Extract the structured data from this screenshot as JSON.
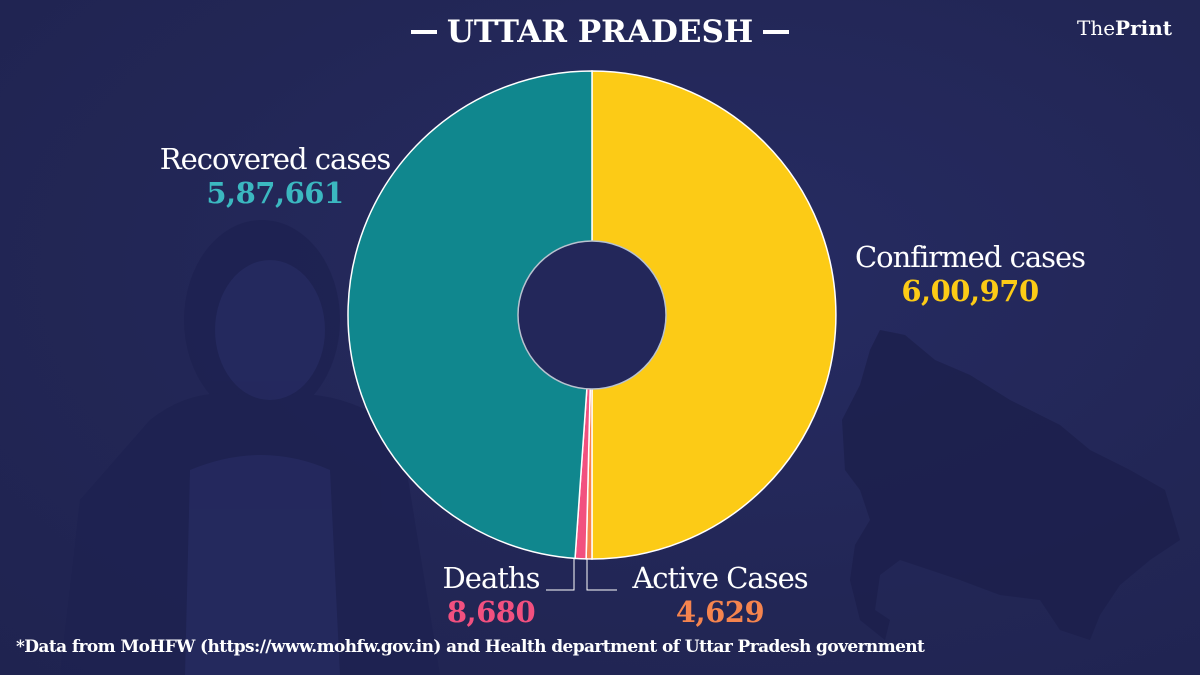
{
  "header": {
    "title": "UTTAR PRADESH",
    "logo_the": "The",
    "logo_print": "Print"
  },
  "labels": {
    "recovered": {
      "name": "Recovered cases",
      "value": "5,87,661"
    },
    "confirmed": {
      "name": "Confirmed cases",
      "value": "6,00,970"
    },
    "deaths": {
      "name": "Deaths",
      "value": "8,680"
    },
    "active": {
      "name": "Active Cases",
      "value": "4,629"
    }
  },
  "footnote": "*Data from MoHFW (https://www.mohfw.gov.in) and Health department of  Uttar Pradesh government",
  "colors": {
    "background": "#23275a",
    "confirmed": "#fccb16",
    "recovered": "#10878e",
    "deaths": "#f2507f",
    "active": "#f5844e",
    "recovered_text": "#3bb8c0",
    "deaths_text": "#f2507f",
    "active_text": "#f5844e",
    "confirmed_text": "#fccb16"
  },
  "chart_data": {
    "type": "pie",
    "subtype": "donut",
    "title": "UTTAR PRADESH",
    "categories": [
      "Confirmed cases",
      "Active Cases",
      "Deaths",
      "Recovered cases"
    ],
    "values": [
      600970,
      4629,
      8680,
      587661
    ],
    "display_values": [
      "6,00,970",
      "4,629",
      "8,680",
      "5,87,661"
    ],
    "colors": [
      "#fccb16",
      "#f5844e",
      "#f2507f",
      "#10878e"
    ],
    "note": "Confirmed occupies one half; Active + Deaths + Recovered together form the other half",
    "legend": "none (direct labels)"
  }
}
